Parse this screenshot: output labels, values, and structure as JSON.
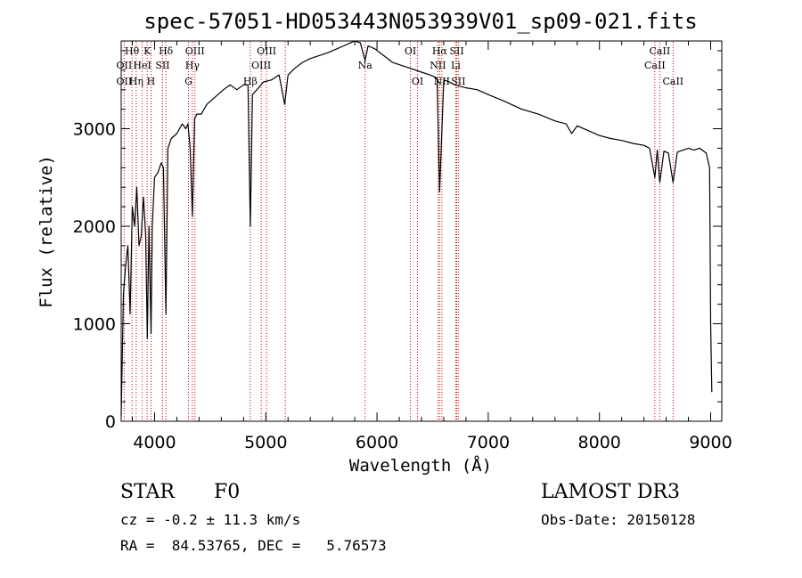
{
  "chart_data": {
    "type": "line",
    "title": "spec-57051-HD053443N053939V01_sp09-021.fits",
    "xlabel": "Wavelength (Å)",
    "ylabel": "Flux (relative)",
    "xlim": [
      3700,
      9100
    ],
    "ylim": [
      0,
      3900
    ],
    "xticks": [
      4000,
      5000,
      6000,
      7000,
      8000,
      9000
    ],
    "yticks": [
      0,
      1000,
      2000,
      3000
    ],
    "series": [
      {
        "name": "flux",
        "x": [
          3700,
          3720,
          3740,
          3760,
          3780,
          3800,
          3820,
          3840,
          3860,
          3880,
          3900,
          3920,
          3935,
          3950,
          3968,
          3980,
          4000,
          4030,
          4060,
          4080,
          4102,
          4120,
          4150,
          4200,
          4250,
          4280,
          4300,
          4320,
          4340,
          4360,
          4380,
          4420,
          4470,
          4520,
          4570,
          4620,
          4680,
          4740,
          4800,
          4840,
          4861,
          4880,
          4920,
          4980,
          5050,
          5120,
          5170,
          5200,
          5260,
          5330,
          5400,
          5480,
          5560,
          5640,
          5700,
          5760,
          5800,
          5850,
          5893,
          5920,
          5980,
          6060,
          6140,
          6220,
          6300,
          6400,
          6480,
          6540,
          6563,
          6600,
          6650,
          6700,
          6800,
          6900,
          7000,
          7150,
          7300,
          7450,
          7600,
          7700,
          7750,
          7800,
          7900,
          8000,
          8100,
          8200,
          8300,
          8400,
          8450,
          8498,
          8520,
          8542,
          8580,
          8620,
          8662,
          8700,
          8750,
          8800,
          8850,
          8900,
          8960,
          8990,
          9000,
          9010
        ],
        "y": [
          50,
          1300,
          1600,
          1800,
          1100,
          2200,
          2000,
          2400,
          1800,
          1900,
          2300,
          1900,
          850,
          2000,
          900,
          2000,
          2500,
          2550,
          2650,
          2600,
          1100,
          2800,
          2900,
          2950,
          3050,
          3000,
          3050,
          2800,
          2100,
          3100,
          3150,
          3150,
          3250,
          3300,
          3350,
          3400,
          3450,
          3400,
          3450,
          3450,
          2000,
          3350,
          3400,
          3480,
          3500,
          3550,
          3250,
          3550,
          3620,
          3680,
          3720,
          3750,
          3780,
          3820,
          3850,
          3880,
          3900,
          3880,
          3700,
          3850,
          3820,
          3750,
          3680,
          3650,
          3620,
          3580,
          3550,
          3520,
          2350,
          3500,
          3480,
          3450,
          3420,
          3400,
          3350,
          3280,
          3200,
          3150,
          3080,
          3050,
          2950,
          3030,
          2980,
          2930,
          2900,
          2880,
          2850,
          2830,
          2800,
          2500,
          2780,
          2450,
          2770,
          2750,
          2450,
          2760,
          2780,
          2800,
          2780,
          2800,
          2750,
          2600,
          1000,
          300
        ]
      }
    ],
    "lines": [
      {
        "label": "Hθ",
        "wave": 3797,
        "row": 0
      },
      {
        "label": "OII",
        "wave": 3727,
        "row": 1
      },
      {
        "label": "OII",
        "wave": 3727,
        "row": 2
      },
      {
        "label": "HeI",
        "wave": 3889,
        "row": 1
      },
      {
        "label": "Hη",
        "wave": 3835,
        "row": 2
      },
      {
        "label": "K",
        "wave": 3934,
        "row": 0
      },
      {
        "label": "H",
        "wave": 3968,
        "row": 2
      },
      {
        "label": "SII",
        "wave": 4072,
        "row": 1
      },
      {
        "label": "Hδ",
        "wave": 4102,
        "row": 0
      },
      {
        "label": "OIII",
        "wave": 4363,
        "row": 0
      },
      {
        "label": "Hγ",
        "wave": 4340,
        "row": 1
      },
      {
        "label": "G",
        "wave": 4305,
        "row": 2
      },
      {
        "label": "OIII",
        "wave": 5007,
        "row": 0
      },
      {
        "label": "OIII",
        "wave": 4959,
        "row": 1
      },
      {
        "label": "Hβ",
        "wave": 4861,
        "row": 2
      },
      {
        "label": "Na",
        "wave": 5893,
        "row": 1
      },
      {
        "label": "OI",
        "wave": 6300,
        "row": 0
      },
      {
        "label": "OI",
        "wave": 6364,
        "row": 2
      },
      {
        "label": "Hα",
        "wave": 6563,
        "row": 0
      },
      {
        "label": "SII",
        "wave": 6717,
        "row": 0
      },
      {
        "label": "NII",
        "wave": 6548,
        "row": 1
      },
      {
        "label": "Li",
        "wave": 6708,
        "row": 1
      },
      {
        "label": "NII",
        "wave": 6583,
        "row": 2
      },
      {
        "label": "SII",
        "wave": 6731,
        "row": 2
      },
      {
        "label": "CaII",
        "wave": 8542,
        "row": 0
      },
      {
        "label": "CaII",
        "wave": 8498,
        "row": 1
      },
      {
        "label": "CaII",
        "wave": 8662,
        "row": 2
      }
    ],
    "extra_line_waves": [
      5175
    ]
  },
  "info": {
    "object_class": "STAR",
    "subclass": "F0",
    "survey": "LAMOST DR3",
    "cz": "cz = -0.2 ± 11.3 km/s",
    "obs_date": "Obs-Date: 20150128",
    "coords": "RA =  84.53765, DEC =   5.76573"
  },
  "colors": {
    "spectrum": "#000000",
    "line_marker": "#cc0000",
    "background": "#ffffff"
  }
}
